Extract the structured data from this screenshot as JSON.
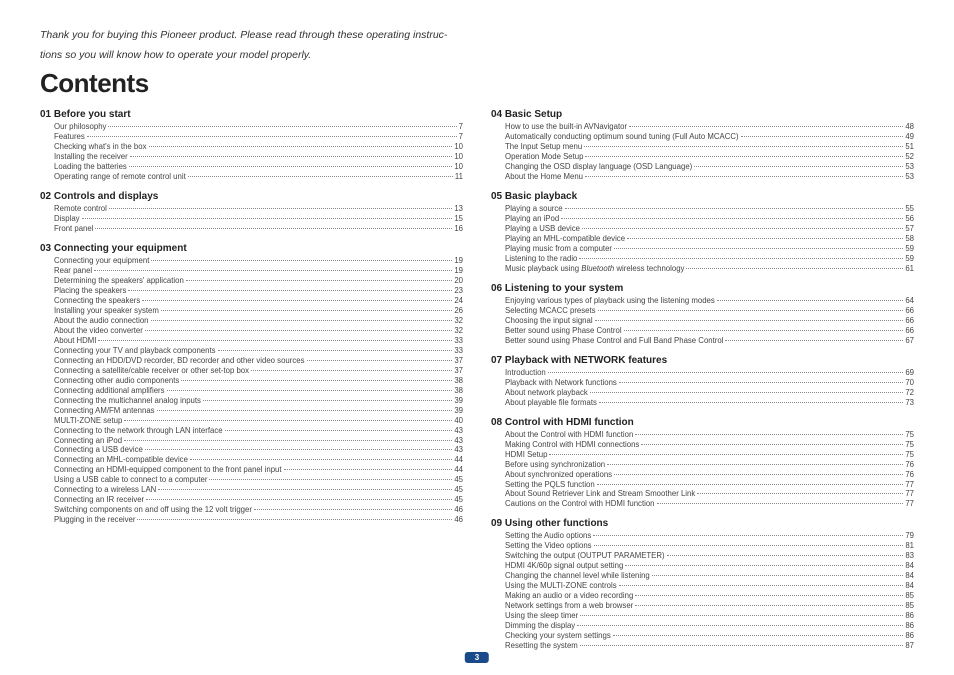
{
  "intro_l1": "Thank you for buying this Pioneer product. Please read through these operating instruc-",
  "intro_l2": "tions so you will know how to operate your model properly.",
  "title": "Contents",
  "page_number": "3",
  "left": [
    {
      "heading": "01 Before you start",
      "items": [
        {
          "t": "Our philosophy",
          "p": "7"
        },
        {
          "t": "Features",
          "p": "7"
        },
        {
          "t": "Checking what's in the box",
          "p": "10"
        },
        {
          "t": "Installing the receiver",
          "p": "10"
        },
        {
          "t": "Loading the batteries",
          "p": "10"
        },
        {
          "t": "Operating range of remote control unit",
          "p": "11"
        }
      ]
    },
    {
      "heading": "02 Controls and displays",
      "items": [
        {
          "t": "Remote control",
          "p": "13"
        },
        {
          "t": "Display",
          "p": "15"
        },
        {
          "t": "Front panel",
          "p": "16"
        }
      ]
    },
    {
      "heading": "03 Connecting your equipment",
      "items": [
        {
          "t": "Connecting your equipment",
          "p": "19"
        },
        {
          "t": "Rear panel",
          "p": "19"
        },
        {
          "t": "Determining the speakers' application",
          "p": "20"
        },
        {
          "t": "Placing the speakers",
          "p": "23"
        },
        {
          "t": "Connecting the speakers",
          "p": "24"
        },
        {
          "t": "Installing your speaker system",
          "p": "26"
        },
        {
          "t": "About the audio connection",
          "p": "32"
        },
        {
          "t": "About the video converter",
          "p": "32"
        },
        {
          "t": "About HDMI",
          "p": "33"
        },
        {
          "t": "Connecting your TV and playback components",
          "p": "33"
        },
        {
          "t": "Connecting an HDD/DVD recorder, BD recorder and other video sources",
          "p": "37"
        },
        {
          "t": "Connecting a satellite/cable receiver or other set-top box",
          "p": "37"
        },
        {
          "t": "Connecting other audio components",
          "p": "38"
        },
        {
          "t": "Connecting additional amplifiers",
          "p": "38"
        },
        {
          "t": "Connecting the multichannel analog inputs",
          "p": "39"
        },
        {
          "t": "Connecting AM/FM antennas",
          "p": "39"
        },
        {
          "t": "MULTI-ZONE setup",
          "p": "40"
        },
        {
          "t": "Connecting to the network through LAN interface",
          "p": "43"
        },
        {
          "t": "Connecting an iPod",
          "p": "43"
        },
        {
          "t": "Connecting a USB device",
          "p": "43"
        },
        {
          "t": "Connecting an MHL-compatible device",
          "p": "44"
        },
        {
          "t": "Connecting an HDMI-equipped component to the front panel input",
          "p": "44"
        },
        {
          "t": "Using a USB cable to connect to a computer",
          "p": "45"
        },
        {
          "t": "Connecting to a wireless LAN",
          "p": "45"
        },
        {
          "t": "Connecting an IR receiver",
          "p": "45"
        },
        {
          "t": "Switching components on and off using the 12 volt trigger",
          "p": "46"
        },
        {
          "t": "Plugging in the receiver",
          "p": "46"
        }
      ]
    }
  ],
  "right": [
    {
      "heading": "04 Basic Setup",
      "items": [
        {
          "t": "How to use the built-in AVNavigator",
          "p": "48"
        },
        {
          "t": "Automatically conducting optimum sound tuning (Full Auto MCACC)",
          "p": "49"
        },
        {
          "t": "The Input Setup menu",
          "p": "51"
        },
        {
          "t": "Operation Mode Setup",
          "p": "52"
        },
        {
          "t": "Changing the OSD display language (OSD Language)",
          "p": "53"
        },
        {
          "t": "About the Home Menu",
          "p": "53"
        }
      ]
    },
    {
      "heading": "05 Basic playback",
      "items": [
        {
          "t": "Playing a source",
          "p": "55"
        },
        {
          "t": "Playing an iPod",
          "p": "56"
        },
        {
          "t": "Playing a USB device",
          "p": "57"
        },
        {
          "t": "Playing an MHL-compatible device",
          "p": "58"
        },
        {
          "t": "Playing music from a computer",
          "p": "59"
        },
        {
          "t": "Listening to the radio",
          "p": "59"
        },
        {
          "t": "Music playback using <i>Bluetooth</i> wireless technology",
          "p": "61",
          "html": true
        }
      ]
    },
    {
      "heading": "06 Listening to your system",
      "items": [
        {
          "t": "Enjoying various types of playback using the listening modes",
          "p": "64"
        },
        {
          "t": "Selecting MCACC presets",
          "p": "66"
        },
        {
          "t": "Choosing the input signal",
          "p": "66"
        },
        {
          "t": "Better sound using Phase Control",
          "p": "66"
        },
        {
          "t": "Better sound using Phase Control and Full Band Phase Control",
          "p": "67"
        }
      ]
    },
    {
      "heading": "07 Playback with NETWORK features",
      "items": [
        {
          "t": "Introduction",
          "p": "69"
        },
        {
          "t": "Playback with Network functions",
          "p": "70"
        },
        {
          "t": "About network playback",
          "p": "72"
        },
        {
          "t": "About playable file formats",
          "p": "73"
        }
      ]
    },
    {
      "heading": "08 Control with HDMI function",
      "items": [
        {
          "t": "About the Control with HDMI function",
          "p": "75"
        },
        {
          "t": "Making Control with HDMI connections",
          "p": "75"
        },
        {
          "t": "HDMI Setup",
          "p": "75"
        },
        {
          "t": "Before using synchronization",
          "p": "76"
        },
        {
          "t": "About synchronized operations",
          "p": "76"
        },
        {
          "t": "Setting the PQLS function",
          "p": "77"
        },
        {
          "t": "About Sound Retriever Link and Stream Smoother Link",
          "p": "77"
        },
        {
          "t": "Cautions on the Control with HDMI function",
          "p": "77"
        }
      ]
    },
    {
      "heading": "09 Using other functions",
      "items": [
        {
          "t": "Setting the Audio options",
          "p": "79"
        },
        {
          "t": "Setting the Video options",
          "p": "81"
        },
        {
          "t": "Switching the output (OUTPUT PARAMETER)",
          "p": "83"
        },
        {
          "t": "HDMI 4K/60p signal output setting",
          "p": "84"
        },
        {
          "t": "Changing the channel level while listening",
          "p": "84"
        },
        {
          "t": "Using the MULTI-ZONE controls",
          "p": "84"
        },
        {
          "t": "Making an audio or a video recording",
          "p": "85"
        },
        {
          "t": "Network settings from a web browser",
          "p": "85"
        },
        {
          "t": "Using the sleep timer",
          "p": "86"
        },
        {
          "t": "Dimming the display",
          "p": "86"
        },
        {
          "t": "Checking your system settings",
          "p": "86"
        },
        {
          "t": "Resetting the system",
          "p": "87"
        }
      ]
    }
  ]
}
